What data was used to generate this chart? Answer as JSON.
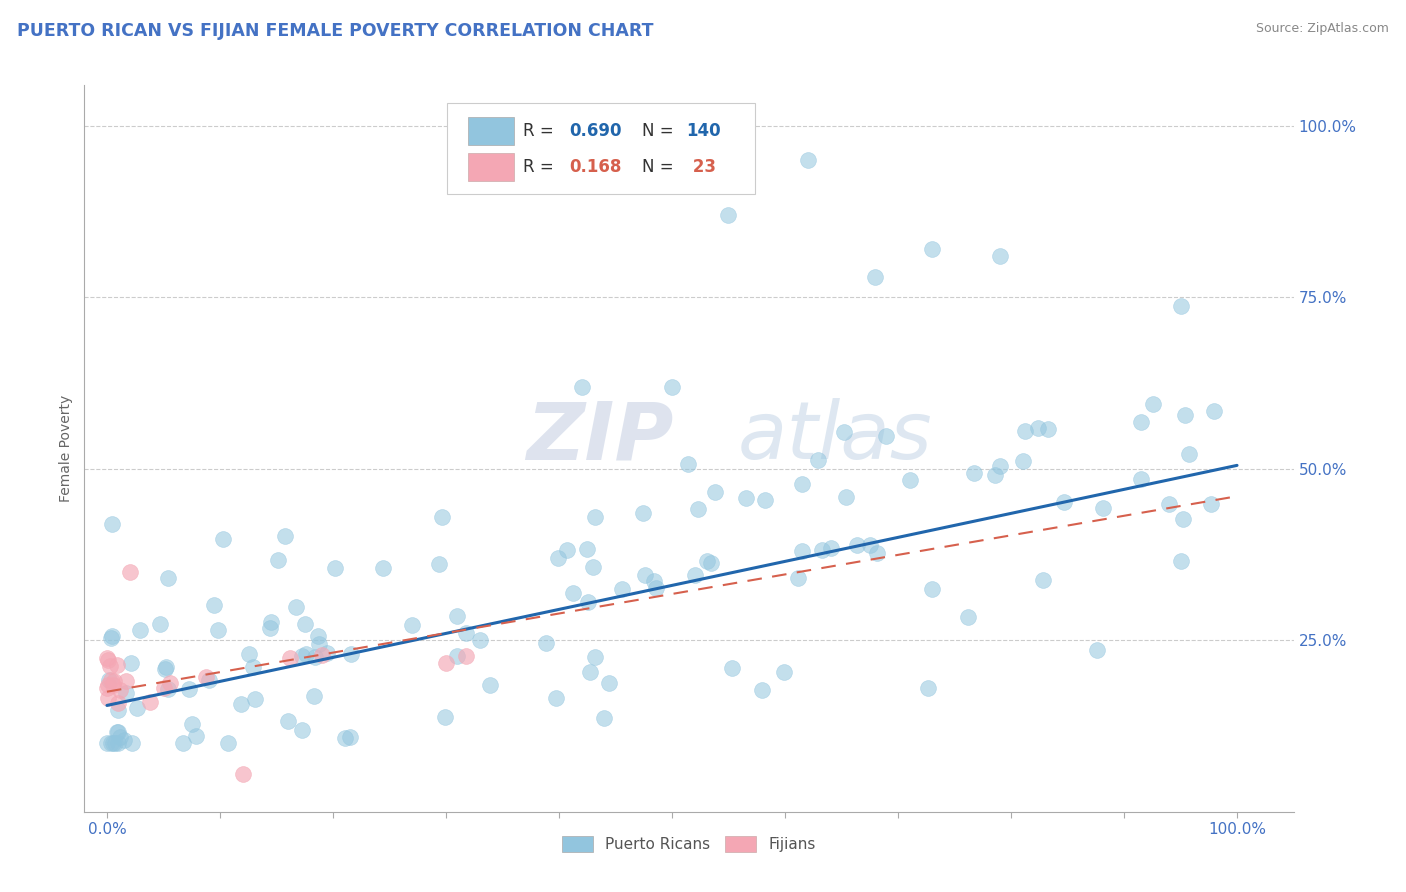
{
  "title": "PUERTO RICAN VS FIJIAN FEMALE POVERTY CORRELATION CHART",
  "source": "Source: ZipAtlas.com",
  "ylabel": "Female Poverty",
  "blue_color": "#92c5de",
  "pink_color": "#f4a7b4",
  "blue_line_color": "#2166ac",
  "pink_line_color": "#d6604d",
  "title_color": "#4472c4",
  "ytick_color": "#4472c4",
  "xtick_color": "#4472c4",
  "blue_line_x0": 0.0,
  "blue_line_y0": 0.155,
  "blue_line_x1": 1.0,
  "blue_line_y1": 0.505,
  "pink_line_x0": 0.0,
  "pink_line_y0": 0.175,
  "pink_line_x1": 1.0,
  "pink_line_y1": 0.46,
  "xlim": [
    -0.02,
    1.05
  ],
  "ylim": [
    0.0,
    1.06
  ]
}
